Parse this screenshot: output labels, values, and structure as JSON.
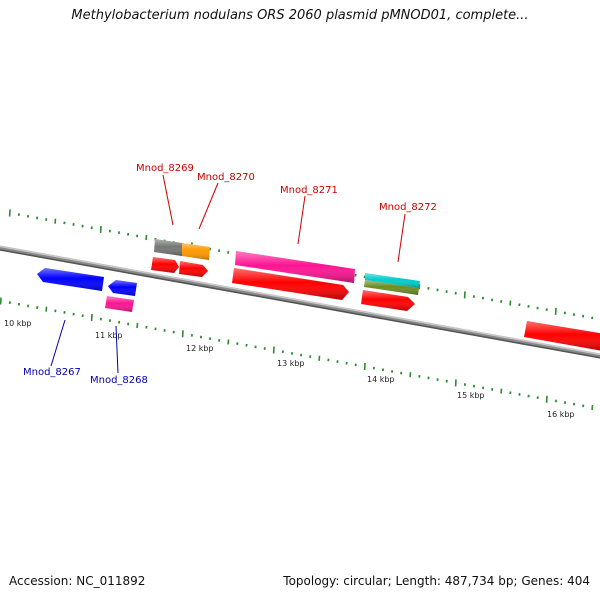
{
  "title": "Methylobacterium nodulans ORS 2060 plasmid pMNOD01, complete...",
  "footer": {
    "accession": "Accession: NC_011892",
    "summary": "Topology: circular; Length: 487,734 bp; Genes: 404"
  },
  "colors": {
    "backbone": "#808080",
    "tick": "#2e8b2e",
    "forward_label": "#cc0000",
    "reverse_label": "#0000aa",
    "red": "#ff0000",
    "blue": "#0000ff",
    "pink": "#ff1493",
    "grey": "#777777",
    "orange": "#ff9900",
    "cyan": "#00cccc",
    "olive": "#6b8e23"
  },
  "tick_labels": [
    "10 kbp",
    "11 kbp",
    "12 kbp",
    "13 kbp",
    "14 kbp",
    "15 kbp",
    "16 kbp"
  ],
  "gene_labels": {
    "mnod_8267": "Mnod_8267",
    "mnod_8268": "Mnod_8268",
    "mnod_8269": "Mnod_8269",
    "mnod_8270": "Mnod_8270",
    "mnod_8271": "Mnod_8271",
    "mnod_8272": "Mnod_8272"
  }
}
